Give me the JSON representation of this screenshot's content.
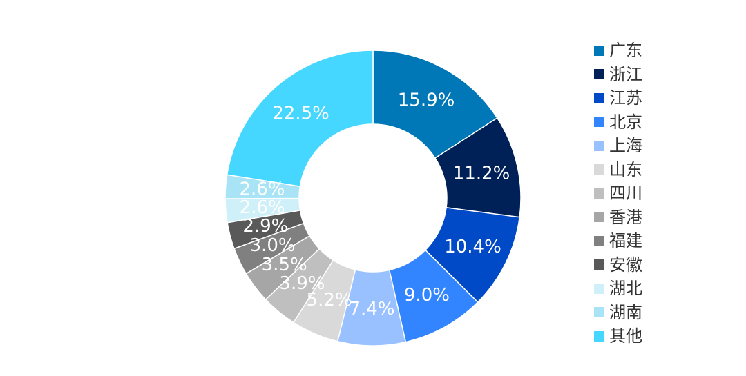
{
  "chart_data": {
    "type": "pie",
    "donut": true,
    "legend_position": "right",
    "slices": [
      {
        "label": "广东",
        "value": 15.9,
        "value_label": "15.9%",
        "color": "#0077B6"
      },
      {
        "label": "浙江",
        "value": 11.2,
        "value_label": "11.2%",
        "color": "#002157"
      },
      {
        "label": "江苏",
        "value": 10.4,
        "value_label": "10.4%",
        "color": "#0049C7"
      },
      {
        "label": "北京",
        "value": 9.0,
        "value_label": "9.0%",
        "color": "#3385FF"
      },
      {
        "label": "上海",
        "value": 7.4,
        "value_label": "7.4%",
        "color": "#99C1FF"
      },
      {
        "label": "山东",
        "value": 5.2,
        "value_label": "5.2%",
        "color": "#D9D9D9"
      },
      {
        "label": "四川",
        "value": 3.9,
        "value_label": "3.9%",
        "color": "#BFBFBF"
      },
      {
        "label": "香港",
        "value": 3.5,
        "value_label": "3.5%",
        "color": "#A6A6A6"
      },
      {
        "label": "福建",
        "value": 3.0,
        "value_label": "3.0%",
        "color": "#808080"
      },
      {
        "label": "安徽",
        "value": 2.9,
        "value_label": "2.9%",
        "color": "#595959"
      },
      {
        "label": "湖北",
        "value": 2.6,
        "value_label": "2.6%",
        "color": "#CFF0F8"
      },
      {
        "label": "湖南",
        "value": 2.6,
        "value_label": "2.6%",
        "color": "#A8E4F5"
      },
      {
        "label": "其他",
        "value": 22.5,
        "value_label": "22.5%",
        "color": "#45D7FF"
      }
    ]
  }
}
